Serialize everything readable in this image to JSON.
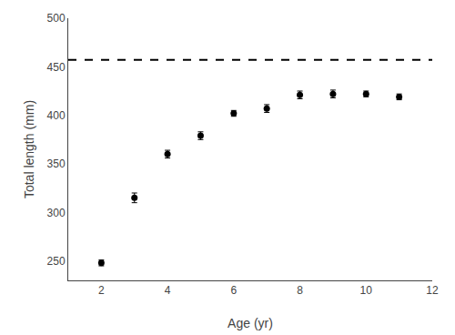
{
  "chart_data": {
    "type": "scatter",
    "x": [
      2,
      3,
      4,
      5,
      6,
      7,
      8,
      9,
      10,
      11
    ],
    "values": [
      248,
      315,
      360,
      379,
      402,
      407,
      421,
      422,
      422,
      419
    ],
    "error_bars": [
      3,
      5,
      4,
      4,
      3,
      4,
      4,
      4,
      3,
      3
    ],
    "color": "#000000",
    "marker": "circle",
    "reference_line": {
      "value": 457,
      "color": "#000000",
      "line_style": "dash"
    },
    "xlabel": "Age (yr)",
    "ylabel": "Total length (mm)",
    "xlim": [
      1,
      12
    ],
    "ylim": [
      230,
      500
    ],
    "xticks": [
      2,
      4,
      6,
      8,
      10,
      12
    ],
    "yticks": [
      250,
      300,
      350,
      400,
      450,
      500
    ],
    "grid": false
  }
}
